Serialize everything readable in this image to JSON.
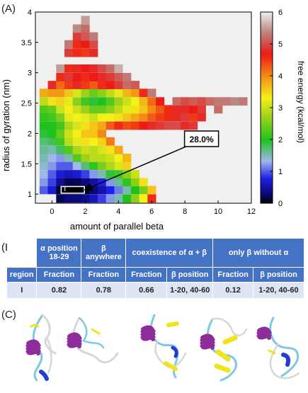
{
  "panel_labels": {
    "a": "(A)",
    "b": "(B)",
    "c": "(C)"
  },
  "chart_data": {
    "type": "heatmap",
    "title": "",
    "xlabel": "amount of parallel beta",
    "ylabel": "radius of gyration (nm)",
    "xlim": [
      -1,
      12
    ],
    "ylim": [
      0.85,
      4
    ],
    "x_ticks": [
      0,
      2,
      4,
      6,
      8,
      10,
      12
    ],
    "y_ticks": [
      1,
      1.5,
      2,
      2.5,
      3,
      3.5,
      4
    ],
    "x_tick_labels": [
      "0",
      "2",
      "4",
      "6",
      "8",
      "10",
      "12"
    ],
    "y_tick_labels": [
      "1",
      "1.5",
      "2",
      "2.5",
      "3",
      "3.5",
      "4"
    ],
    "colorbar": {
      "label": "free energy (kcal/mol)",
      "range": [
        0,
        6
      ],
      "ticks": [
        0,
        1,
        2,
        3,
        4,
        5,
        6
      ],
      "tick_labels": [
        "0",
        "1",
        "2",
        "3",
        "4",
        "5",
        "6"
      ]
    },
    "bin_width_x": 0.5,
    "bin_height_y": 0.1333,
    "grid": false,
    "cells": [
      {
        "x": 0.5,
        "y": 0.93,
        "v": 0.2
      },
      {
        "x": 1.0,
        "y": 0.93,
        "v": 0.3
      },
      {
        "x": 1.5,
        "y": 0.93,
        "v": 0.3
      },
      {
        "x": 2.0,
        "y": 0.93,
        "v": 0.4
      },
      {
        "x": 2.5,
        "y": 0.93,
        "v": 0.6
      },
      {
        "x": 3.0,
        "y": 0.93,
        "v": 0.9
      },
      {
        "x": 3.5,
        "y": 0.93,
        "v": 1.2
      },
      {
        "x": 4.0,
        "y": 0.93,
        "v": 1.5
      },
      {
        "x": 4.5,
        "y": 0.93,
        "v": 2.0
      },
      {
        "x": 5.0,
        "y": 0.93,
        "v": 2.6
      },
      {
        "x": 5.5,
        "y": 0.93,
        "v": 3.3
      },
      {
        "x": 6.0,
        "y": 0.93,
        "v": 4.6
      },
      {
        "x": -0.5,
        "y": 1.07,
        "v": 1.0
      },
      {
        "x": 0.0,
        "y": 1.07,
        "v": 0.7
      },
      {
        "x": 0.5,
        "y": 1.07,
        "v": 0.1
      },
      {
        "x": 1.0,
        "y": 1.07,
        "v": 0.0
      },
      {
        "x": 1.5,
        "y": 1.07,
        "v": 0.0
      },
      {
        "x": 2.0,
        "y": 1.07,
        "v": 0.1
      },
      {
        "x": 2.5,
        "y": 1.07,
        "v": 0.3
      },
      {
        "x": 3.0,
        "y": 1.07,
        "v": 0.5
      },
      {
        "x": 3.5,
        "y": 1.07,
        "v": 0.8
      },
      {
        "x": 4.0,
        "y": 1.07,
        "v": 1.1
      },
      {
        "x": 4.5,
        "y": 1.07,
        "v": 1.5
      },
      {
        "x": 5.0,
        "y": 1.07,
        "v": 2.0
      },
      {
        "x": 5.5,
        "y": 1.07,
        "v": 2.5
      },
      {
        "x": 6.0,
        "y": 1.07,
        "v": 3.6
      },
      {
        "x": -0.5,
        "y": 1.2,
        "v": 1.2
      },
      {
        "x": 0.0,
        "y": 1.2,
        "v": 0.9
      },
      {
        "x": 0.5,
        "y": 1.2,
        "v": 0.4
      },
      {
        "x": 1.0,
        "y": 1.2,
        "v": 0.2
      },
      {
        "x": 1.5,
        "y": 1.2,
        "v": 0.2
      },
      {
        "x": 2.0,
        "y": 1.2,
        "v": 0.3
      },
      {
        "x": 2.5,
        "y": 1.2,
        "v": 0.5
      },
      {
        "x": 3.0,
        "y": 1.2,
        "v": 0.8
      },
      {
        "x": 3.5,
        "y": 1.2,
        "v": 1.2
      },
      {
        "x": 4.0,
        "y": 1.2,
        "v": 1.6
      },
      {
        "x": 4.5,
        "y": 1.2,
        "v": 2.1
      },
      {
        "x": 5.0,
        "y": 1.2,
        "v": 2.6
      },
      {
        "x": 5.5,
        "y": 1.2,
        "v": 3.4
      },
      {
        "x": -0.5,
        "y": 1.33,
        "v": 1.3
      },
      {
        "x": 0.0,
        "y": 1.33,
        "v": 1.0
      },
      {
        "x": 0.5,
        "y": 1.33,
        "v": 0.7
      },
      {
        "x": 1.0,
        "y": 1.33,
        "v": 0.6
      },
      {
        "x": 1.5,
        "y": 1.33,
        "v": 0.7
      },
      {
        "x": 2.0,
        "y": 1.33,
        "v": 0.9
      },
      {
        "x": 2.5,
        "y": 1.33,
        "v": 1.2
      },
      {
        "x": 3.0,
        "y": 1.33,
        "v": 1.5
      },
      {
        "x": 3.5,
        "y": 1.33,
        "v": 1.9
      },
      {
        "x": 4.0,
        "y": 1.33,
        "v": 2.2
      },
      {
        "x": 4.5,
        "y": 1.33,
        "v": 2.6
      },
      {
        "x": 5.0,
        "y": 1.33,
        "v": 3.0
      },
      {
        "x": -0.5,
        "y": 1.47,
        "v": 1.4
      },
      {
        "x": 0.0,
        "y": 1.47,
        "v": 1.2
      },
      {
        "x": 0.5,
        "y": 1.47,
        "v": 1.0
      },
      {
        "x": 1.0,
        "y": 1.47,
        "v": 1.0
      },
      {
        "x": 1.5,
        "y": 1.47,
        "v": 1.3
      },
      {
        "x": 2.0,
        "y": 1.47,
        "v": 1.7
      },
      {
        "x": 2.5,
        "y": 1.47,
        "v": 2.1
      },
      {
        "x": 3.0,
        "y": 1.47,
        "v": 2.5
      },
      {
        "x": 3.5,
        "y": 1.47,
        "v": 2.8
      },
      {
        "x": 4.0,
        "y": 1.47,
        "v": 3.1
      },
      {
        "x": 4.5,
        "y": 1.47,
        "v": 3.5
      },
      {
        "x": -0.5,
        "y": 1.6,
        "v": 1.5
      },
      {
        "x": 0.0,
        "y": 1.6,
        "v": 1.3
      },
      {
        "x": 0.5,
        "y": 1.6,
        "v": 1.2
      },
      {
        "x": 1.0,
        "y": 1.6,
        "v": 1.5
      },
      {
        "x": 1.5,
        "y": 1.6,
        "v": 2.3
      },
      {
        "x": 2.0,
        "y": 1.6,
        "v": 2.7
      },
      {
        "x": 2.5,
        "y": 1.6,
        "v": 2.9
      },
      {
        "x": 3.0,
        "y": 1.6,
        "v": 2.9
      },
      {
        "x": 3.5,
        "y": 1.6,
        "v": 3.0
      },
      {
        "x": 4.0,
        "y": 1.6,
        "v": 3.3
      },
      {
        "x": 4.5,
        "y": 1.6,
        "v": 3.7
      },
      {
        "x": -0.5,
        "y": 1.73,
        "v": 1.6
      },
      {
        "x": 0.0,
        "y": 1.73,
        "v": 1.5
      },
      {
        "x": 0.5,
        "y": 1.73,
        "v": 1.8
      },
      {
        "x": 1.0,
        "y": 1.73,
        "v": 2.3
      },
      {
        "x": 1.5,
        "y": 1.73,
        "v": 2.8
      },
      {
        "x": 2.0,
        "y": 1.73,
        "v": 3.0
      },
      {
        "x": 2.5,
        "y": 1.73,
        "v": 2.9
      },
      {
        "x": 3.0,
        "y": 1.73,
        "v": 3.1
      },
      {
        "x": 3.5,
        "y": 1.73,
        "v": 3.4
      },
      {
        "x": 4.0,
        "y": 1.73,
        "v": 3.8
      },
      {
        "x": -0.5,
        "y": 1.87,
        "v": 1.7
      },
      {
        "x": 0.0,
        "y": 1.87,
        "v": 1.8
      },
      {
        "x": 0.5,
        "y": 1.87,
        "v": 2.2
      },
      {
        "x": 1.0,
        "y": 1.87,
        "v": 2.9
      },
      {
        "x": 1.5,
        "y": 1.87,
        "v": 3.2
      },
      {
        "x": 2.0,
        "y": 1.87,
        "v": 3.4
      },
      {
        "x": 2.5,
        "y": 1.87,
        "v": 3.3
      },
      {
        "x": 3.0,
        "y": 1.87,
        "v": 3.5
      },
      {
        "x": 3.5,
        "y": 1.87,
        "v": 4.1
      },
      {
        "x": -0.5,
        "y": 2.0,
        "v": 1.9
      },
      {
        "x": 0.0,
        "y": 2.0,
        "v": 2.0
      },
      {
        "x": 0.5,
        "y": 2.0,
        "v": 2.4
      },
      {
        "x": 1.0,
        "y": 2.0,
        "v": 3.0
      },
      {
        "x": 1.5,
        "y": 2.0,
        "v": 3.3
      },
      {
        "x": 2.0,
        "y": 2.0,
        "v": 3.6
      },
      {
        "x": 2.5,
        "y": 2.0,
        "v": 3.6
      },
      {
        "x": 3.0,
        "y": 2.0,
        "v": 4.0
      },
      {
        "x": -0.5,
        "y": 2.13,
        "v": 2.0
      },
      {
        "x": 0.0,
        "y": 2.13,
        "v": 2.0
      },
      {
        "x": 0.5,
        "y": 2.13,
        "v": 2.2
      },
      {
        "x": 1.0,
        "y": 2.13,
        "v": 2.8
      },
      {
        "x": 1.5,
        "y": 2.13,
        "v": 3.1
      },
      {
        "x": 2.0,
        "y": 2.13,
        "v": 3.4
      },
      {
        "x": 2.5,
        "y": 2.13,
        "v": 3.6
      },
      {
        "x": 3.0,
        "y": 2.13,
        "v": 3.8
      },
      {
        "x": 3.5,
        "y": 2.13,
        "v": 4.3
      },
      {
        "x": 4.0,
        "y": 2.13,
        "v": 4.6
      },
      {
        "x": 4.5,
        "y": 2.13,
        "v": 4.4
      },
      {
        "x": 5.0,
        "y": 2.13,
        "v": 4.5
      },
      {
        "x": 5.5,
        "y": 2.13,
        "v": 4.7
      },
      {
        "x": 6.0,
        "y": 2.13,
        "v": 4.8
      },
      {
        "x": 6.5,
        "y": 2.13,
        "v": 4.9
      },
      {
        "x": 7.0,
        "y": 2.13,
        "v": 5.0
      },
      {
        "x": 7.5,
        "y": 2.13,
        "v": 5.0
      },
      {
        "x": 8.0,
        "y": 2.13,
        "v": 4.8
      },
      {
        "x": 8.5,
        "y": 2.13,
        "v": 4.9
      },
      {
        "x": -0.5,
        "y": 2.27,
        "v": 2.1
      },
      {
        "x": 0.0,
        "y": 2.27,
        "v": 2.2
      },
      {
        "x": 0.5,
        "y": 2.27,
        "v": 2.5
      },
      {
        "x": 1.0,
        "y": 2.27,
        "v": 3.2
      },
      {
        "x": 1.5,
        "y": 2.27,
        "v": 3.3
      },
      {
        "x": 2.0,
        "y": 2.27,
        "v": 3.2
      },
      {
        "x": 2.5,
        "y": 2.27,
        "v": 3.0
      },
      {
        "x": 3.0,
        "y": 2.27,
        "v": 3.3
      },
      {
        "x": 3.5,
        "y": 2.27,
        "v": 3.3
      },
      {
        "x": 4.0,
        "y": 2.27,
        "v": 3.4
      },
      {
        "x": 4.5,
        "y": 2.27,
        "v": 3.6
      },
      {
        "x": 5.0,
        "y": 2.27,
        "v": 3.8
      },
      {
        "x": 5.5,
        "y": 2.27,
        "v": 4.0
      },
      {
        "x": 6.0,
        "y": 2.27,
        "v": 4.3
      },
      {
        "x": 6.5,
        "y": 2.27,
        "v": 4.5
      },
      {
        "x": 7.0,
        "y": 2.27,
        "v": 4.6
      },
      {
        "x": 7.5,
        "y": 2.27,
        "v": 4.8
      },
      {
        "x": 8.0,
        "y": 2.27,
        "v": 4.9
      },
      {
        "x": 8.5,
        "y": 2.27,
        "v": 4.5
      },
      {
        "x": 9.0,
        "y": 2.27,
        "v": 4.8
      },
      {
        "x": -0.5,
        "y": 2.4,
        "v": 2.3
      },
      {
        "x": 0.0,
        "y": 2.4,
        "v": 2.4
      },
      {
        "x": 0.5,
        "y": 2.4,
        "v": 3.0
      },
      {
        "x": 1.0,
        "y": 2.4,
        "v": 3.3
      },
      {
        "x": 1.5,
        "y": 2.4,
        "v": 3.0
      },
      {
        "x": 2.0,
        "y": 2.4,
        "v": 2.7
      },
      {
        "x": 2.5,
        "y": 2.4,
        "v": 2.4
      },
      {
        "x": 3.0,
        "y": 2.4,
        "v": 2.4
      },
      {
        "x": 3.5,
        "y": 2.4,
        "v": 2.6
      },
      {
        "x": 4.0,
        "y": 2.4,
        "v": 2.9
      },
      {
        "x": 4.5,
        "y": 2.4,
        "v": 3.2
      },
      {
        "x": 5.0,
        "y": 2.4,
        "v": 3.4
      },
      {
        "x": 5.5,
        "y": 2.4,
        "v": 3.6
      },
      {
        "x": 6.0,
        "y": 2.4,
        "v": 4.0
      },
      {
        "x": 6.5,
        "y": 2.4,
        "v": 4.3
      },
      {
        "x": 7.0,
        "y": 2.4,
        "v": 4.6
      },
      {
        "x": 7.5,
        "y": 2.4,
        "v": 4.8
      },
      {
        "x": 8.0,
        "y": 2.4,
        "v": 4.8
      },
      {
        "x": 8.5,
        "y": 2.4,
        "v": 4.7
      },
      {
        "x": 9.0,
        "y": 2.4,
        "v": 4.9
      },
      {
        "x": 10.0,
        "y": 2.4,
        "v": 5.2
      },
      {
        "x": -0.5,
        "y": 2.53,
        "v": 2.9
      },
      {
        "x": 0.0,
        "y": 2.53,
        "v": 3.4
      },
      {
        "x": 0.5,
        "y": 2.53,
        "v": 3.5
      },
      {
        "x": 1.0,
        "y": 2.53,
        "v": 3.2
      },
      {
        "x": 1.5,
        "y": 2.53,
        "v": 2.6
      },
      {
        "x": 2.0,
        "y": 2.53,
        "v": 2.2
      },
      {
        "x": 2.5,
        "y": 2.53,
        "v": 1.9
      },
      {
        "x": 3.0,
        "y": 2.53,
        "v": 2.0
      },
      {
        "x": 3.5,
        "y": 2.53,
        "v": 2.3
      },
      {
        "x": 4.0,
        "y": 2.53,
        "v": 2.7
      },
      {
        "x": 4.5,
        "y": 2.53,
        "v": 3.0
      },
      {
        "x": 5.0,
        "y": 2.53,
        "v": 3.3
      },
      {
        "x": 5.5,
        "y": 2.53,
        "v": 3.7
      },
      {
        "x": 6.0,
        "y": 2.53,
        "v": 4.2
      },
      {
        "x": 6.5,
        "y": 2.53,
        "v": 4.7
      },
      {
        "x": 7.5,
        "y": 2.53,
        "v": 5.2
      },
      {
        "x": 8.0,
        "y": 2.53,
        "v": 5.0
      },
      {
        "x": 8.5,
        "y": 2.53,
        "v": 5.1
      },
      {
        "x": 9.0,
        "y": 2.53,
        "v": 5.0
      },
      {
        "x": 9.5,
        "y": 2.53,
        "v": 5.2
      },
      {
        "x": 10.0,
        "y": 2.53,
        "v": 5.3
      },
      {
        "x": 10.5,
        "y": 2.53,
        "v": 5.3
      },
      {
        "x": 11.0,
        "y": 2.53,
        "v": 5.4
      },
      {
        "x": 11.5,
        "y": 2.53,
        "v": 5.3
      },
      {
        "x": -0.5,
        "y": 2.67,
        "v": 3.8
      },
      {
        "x": 0.0,
        "y": 2.67,
        "v": 3.9
      },
      {
        "x": 0.5,
        "y": 2.67,
        "v": 3.9
      },
      {
        "x": 1.0,
        "y": 2.67,
        "v": 3.6
      },
      {
        "x": 1.5,
        "y": 2.67,
        "v": 3.1
      },
      {
        "x": 2.0,
        "y": 2.67,
        "v": 2.7
      },
      {
        "x": 2.5,
        "y": 2.67,
        "v": 2.4
      },
      {
        "x": 3.0,
        "y": 2.67,
        "v": 2.6
      },
      {
        "x": 3.5,
        "y": 2.67,
        "v": 2.9
      },
      {
        "x": 4.0,
        "y": 2.67,
        "v": 3.2
      },
      {
        "x": 4.5,
        "y": 2.67,
        "v": 3.7
      },
      {
        "x": 5.0,
        "y": 2.67,
        "v": 3.9
      },
      {
        "x": 5.5,
        "y": 2.67,
        "v": 4.6
      },
      {
        "x": 6.0,
        "y": 2.67,
        "v": 5.3
      },
      {
        "x": 0.0,
        "y": 2.8,
        "v": 4.8
      },
      {
        "x": 0.5,
        "y": 2.8,
        "v": 4.2
      },
      {
        "x": 1.0,
        "y": 2.8,
        "v": 4.5
      },
      {
        "x": 1.5,
        "y": 2.8,
        "v": 4.8
      },
      {
        "x": 2.0,
        "y": 2.8,
        "v": 4.5
      },
      {
        "x": 2.5,
        "y": 2.8,
        "v": 4.3
      },
      {
        "x": 3.0,
        "y": 2.8,
        "v": 4.6
      },
      {
        "x": 3.5,
        "y": 2.8,
        "v": 4.7
      },
      {
        "x": 4.0,
        "y": 2.8,
        "v": 4.9
      },
      {
        "x": 4.5,
        "y": 2.8,
        "v": 5.2
      },
      {
        "x": 5.0,
        "y": 2.8,
        "v": 5.1
      },
      {
        "x": 0.5,
        "y": 2.93,
        "v": 4.6
      },
      {
        "x": 1.0,
        "y": 2.93,
        "v": 4.9
      },
      {
        "x": 1.5,
        "y": 2.93,
        "v": 4.7
      },
      {
        "x": 2.0,
        "y": 2.93,
        "v": 4.6
      },
      {
        "x": 2.5,
        "y": 2.93,
        "v": 4.7
      },
      {
        "x": 3.0,
        "y": 2.93,
        "v": 4.8
      },
      {
        "x": 3.5,
        "y": 2.93,
        "v": 4.9
      },
      {
        "x": 4.0,
        "y": 2.93,
        "v": 5.1
      },
      {
        "x": 4.5,
        "y": 2.93,
        "v": 5.3
      },
      {
        "x": 0.5,
        "y": 3.07,
        "v": 5.5
      },
      {
        "x": 1.0,
        "y": 3.07,
        "v": 4.6
      },
      {
        "x": 1.5,
        "y": 3.07,
        "v": 4.8
      },
      {
        "x": 2.0,
        "y": 3.07,
        "v": 4.7
      },
      {
        "x": 2.5,
        "y": 3.07,
        "v": 4.8
      },
      {
        "x": 3.0,
        "y": 3.07,
        "v": 5.0
      },
      {
        "x": 3.5,
        "y": 3.07,
        "v": 5.2
      },
      {
        "x": 4.0,
        "y": 3.07,
        "v": 5.6
      },
      {
        "x": 1.0,
        "y": 3.33,
        "v": 4.9
      },
      {
        "x": 1.5,
        "y": 3.33,
        "v": 4.6
      },
      {
        "x": 2.0,
        "y": 3.33,
        "v": 4.5
      },
      {
        "x": 2.5,
        "y": 3.33,
        "v": 4.8
      },
      {
        "x": 1.0,
        "y": 3.47,
        "v": 5.3
      },
      {
        "x": 1.5,
        "y": 3.47,
        "v": 4.6
      },
      {
        "x": 2.0,
        "y": 3.47,
        "v": 4.7
      },
      {
        "x": 2.5,
        "y": 3.47,
        "v": 5.0
      },
      {
        "x": 1.5,
        "y": 3.6,
        "v": 4.9
      },
      {
        "x": 2.0,
        "y": 3.6,
        "v": 5.1
      },
      {
        "x": 2.5,
        "y": 3.6,
        "v": 5.3
      },
      {
        "x": 1.5,
        "y": 3.73,
        "v": 5.4
      },
      {
        "x": 2.0,
        "y": 3.73,
        "v": 5.2
      },
      {
        "x": 2.0,
        "y": 3.87,
        "v": 5.5
      }
    ],
    "annotations": [
      {
        "text": "28.0%",
        "box_label": "I",
        "target_x": 1.25,
        "target_y": 1.07,
        "text_x": 9.0,
        "text_y": 1.9
      }
    ]
  },
  "table": {
    "group_headers": [
      "α position 18-29",
      "β anywhere",
      "coexistence of α + β",
      "only β without α"
    ],
    "sub_headers": [
      "region",
      "Fraction",
      "Fraction",
      "Fraction",
      "β position",
      "Fraction",
      "β position"
    ],
    "rows": [
      [
        "I",
        "0.82",
        "0.78",
        "0.66",
        "1-20, 40-60",
        "0.12",
        "1-20, 40-60"
      ]
    ]
  },
  "colors": {
    "table_header": "#4472c4",
    "table_row": "#dde4f3",
    "helix": "#8e2d9a",
    "strand": "#f2e41c",
    "turn": "#7ec8e3",
    "coil": "#d7d7d7",
    "blue_segment": "#1f3fd0"
  }
}
